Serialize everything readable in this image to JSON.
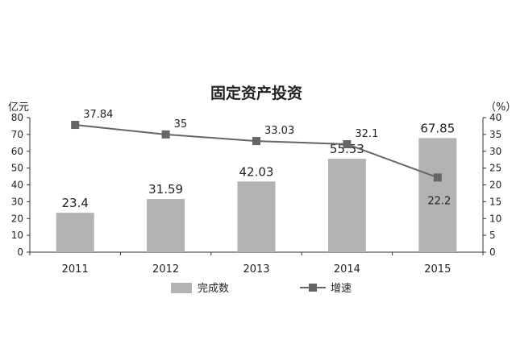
{
  "chart_data": {
    "type": "bar",
    "title": "固定资产投资",
    "y_left_unit": "亿元",
    "y_right_unit": "（%）",
    "categories": [
      "2011",
      "2012",
      "2013",
      "2014",
      "2015"
    ],
    "y_left_lim": [
      0,
      80
    ],
    "y_left_ticks": [
      0,
      10,
      20,
      30,
      40,
      50,
      60,
      70,
      80
    ],
    "y_right_lim": [
      0,
      40
    ],
    "y_right_ticks": [
      0,
      5,
      10,
      15,
      20,
      25,
      30,
      35,
      40
    ],
    "grid": false,
    "legend_position": "bottom",
    "series": [
      {
        "name": "完成数",
        "type": "bar",
        "axis": "left",
        "values": [
          23.4,
          31.59,
          42.03,
          55.53,
          67.85
        ],
        "labels": [
          "23.4",
          "31.59",
          "42.03",
          "55.53",
          "67.85"
        ],
        "color": "#b3b3b3"
      },
      {
        "name": "增速",
        "type": "line",
        "axis": "right",
        "values": [
          37.84,
          35,
          33.03,
          32.1,
          22.2
        ],
        "labels": [
          "37.84",
          "35",
          "33.03",
          "32.1",
          "22.2"
        ],
        "color": "#666666"
      }
    ]
  }
}
